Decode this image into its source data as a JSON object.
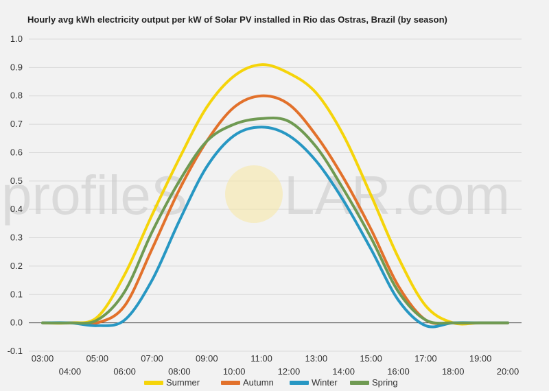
{
  "watermark": {
    "left": "profileS",
    "right": "LAR.com"
  },
  "chart_data": {
    "type": "line",
    "title": "Hourly avg kWh electricity output per kW of Solar PV installed in Rio das Ostras, Brazil (by season)",
    "xlabel": "",
    "ylabel": "",
    "x": [
      "03:00",
      "04:00",
      "05:00",
      "06:00",
      "07:00",
      "08:00",
      "09:00",
      "10:00",
      "11:00",
      "12:00",
      "13:00",
      "14:00",
      "15:00",
      "16:00",
      "17:00",
      "18:00",
      "19:00",
      "20:00"
    ],
    "ylim": [
      -0.1,
      1.0
    ],
    "yticks": [
      "-0.1",
      "0.0",
      "0.1",
      "0.2",
      "0.3",
      "0.4",
      "0.5",
      "0.6",
      "0.7",
      "0.8",
      "0.9",
      "1.0"
    ],
    "grid": true,
    "legend": "bottom",
    "series": [
      {
        "name": "Summer",
        "color": "#f5d40a",
        "values": [
          0.0,
          0.0,
          0.02,
          0.17,
          0.38,
          0.58,
          0.76,
          0.87,
          0.91,
          0.88,
          0.81,
          0.66,
          0.45,
          0.23,
          0.06,
          0.0,
          0.0,
          0.0
        ]
      },
      {
        "name": "Autumn",
        "color": "#e2712b",
        "values": [
          0.0,
          0.0,
          0.0,
          0.06,
          0.26,
          0.47,
          0.64,
          0.76,
          0.8,
          0.77,
          0.66,
          0.51,
          0.33,
          0.13,
          0.01,
          0.0,
          0.0,
          0.0
        ]
      },
      {
        "name": "Winter",
        "color": "#2797c3",
        "values": [
          0.0,
          0.0,
          -0.01,
          0.01,
          0.15,
          0.36,
          0.55,
          0.66,
          0.69,
          0.66,
          0.57,
          0.43,
          0.26,
          0.08,
          -0.01,
          0.0,
          0.0,
          0.0
        ]
      },
      {
        "name": "Spring",
        "color": "#6f9a52",
        "values": [
          0.0,
          0.0,
          0.01,
          0.11,
          0.32,
          0.5,
          0.64,
          0.7,
          0.72,
          0.71,
          0.62,
          0.47,
          0.3,
          0.11,
          0.01,
          0.0,
          0.0,
          0.0
        ]
      }
    ]
  }
}
